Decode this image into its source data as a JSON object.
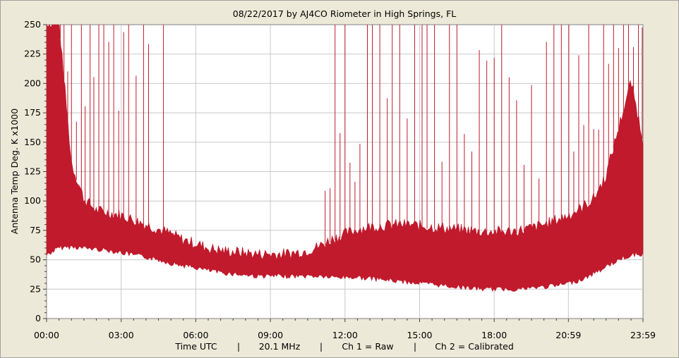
{
  "chart_data": {
    "type": "line",
    "title": "08/22/2017  by  AJ4CO Riometer  in  High Springs, FL",
    "ylabel": "Antenna Temp Deg. K x1000",
    "xlabel": "Time UTC",
    "ylim": [
      0,
      250
    ],
    "yticks": [
      0,
      25,
      50,
      75,
      100,
      125,
      150,
      175,
      200,
      225,
      250
    ],
    "xlim_hours": [
      0,
      23.9833
    ],
    "xticks": [
      {
        "h": 0,
        "label": "00:00"
      },
      {
        "h": 3,
        "label": "03:00"
      },
      {
        "h": 6,
        "label": "06:00"
      },
      {
        "h": 9,
        "label": "09:00"
      },
      {
        "h": 12,
        "label": "12:00"
      },
      {
        "h": 15,
        "label": "15:00"
      },
      {
        "h": 18,
        "label": "18:00"
      },
      {
        "h": 20.9833,
        "label": "20:59"
      },
      {
        "h": 23.9833,
        "label": "23:59"
      }
    ],
    "grid": true,
    "line_color": "#c01a2c",
    "series": [
      {
        "name": "Ch 1 = Raw",
        "x_hours": [
          0,
          0.5,
          1,
          1.5,
          2,
          2.5,
          3,
          3.5,
          4,
          4.5,
          5,
          5.5,
          6,
          6.5,
          7,
          7.5,
          8,
          8.5,
          9,
          9.5,
          10,
          10.5,
          11,
          11.5,
          12,
          12.5,
          13,
          13.5,
          14,
          14.5,
          15,
          15.5,
          16,
          16.5,
          17,
          17.5,
          18,
          18.5,
          19,
          19.5,
          20,
          20.5,
          21,
          21.5,
          22,
          22.5,
          23,
          23.5,
          23.98
        ],
        "lower": [
          56,
          62,
          63,
          62,
          61,
          60,
          58,
          56,
          54,
          52,
          49,
          47,
          45,
          43,
          41,
          40,
          39,
          38,
          38,
          38,
          38,
          38,
          38,
          37,
          37,
          37,
          36,
          35,
          34,
          33,
          32,
          31,
          30,
          29,
          28,
          27,
          27,
          27,
          27,
          28,
          29,
          30,
          32,
          35,
          40,
          46,
          52,
          56,
          57
        ],
        "upper": [
          250,
          250,
          130,
          100,
          90,
          88,
          86,
          82,
          78,
          74,
          70,
          65,
          62,
          58,
          56,
          55,
          54,
          53,
          53,
          53,
          54,
          56,
          60,
          66,
          70,
          74,
          76,
          77,
          78,
          78,
          77,
          76,
          75,
          74,
          73,
          72,
          72,
          72,
          73,
          75,
          78,
          82,
          86,
          92,
          100,
          120,
          160,
          200,
          150
        ]
      }
    ],
    "spikes_hours": [
      0.15,
      0.25,
      0.4,
      0.55,
      0.7,
      0.85,
      1.0,
      1.2,
      1.4,
      1.55,
      1.75,
      1.9,
      2.1,
      2.3,
      2.5,
      2.7,
      2.9,
      3.1,
      3.3,
      3.6,
      3.9,
      4.1,
      4.7,
      11.2,
      11.4,
      11.6,
      11.8,
      12.0,
      12.2,
      12.4,
      12.6,
      12.9,
      13.1,
      13.4,
      13.7,
      13.9,
      14.2,
      14.5,
      14.8,
      15.1,
      15.3,
      15.6,
      15.9,
      16.2,
      16.5,
      16.8,
      17.1,
      17.4,
      17.7,
      18.0,
      18.3,
      18.6,
      18.9,
      19.2,
      19.5,
      19.8,
      20.1,
      20.4,
      20.7,
      21.0,
      21.2,
      21.4,
      21.6,
      21.8,
      22.0,
      22.2,
      22.4,
      22.6,
      22.8,
      23.0,
      23.2,
      23.4,
      23.6,
      23.8,
      23.95
    ],
    "footer": {
      "time": "Time UTC",
      "freq": "20.1 MHz",
      "ch1": "Ch 1 = Raw",
      "ch2": "Ch 2 = Calibrated",
      "sep": "|"
    }
  }
}
